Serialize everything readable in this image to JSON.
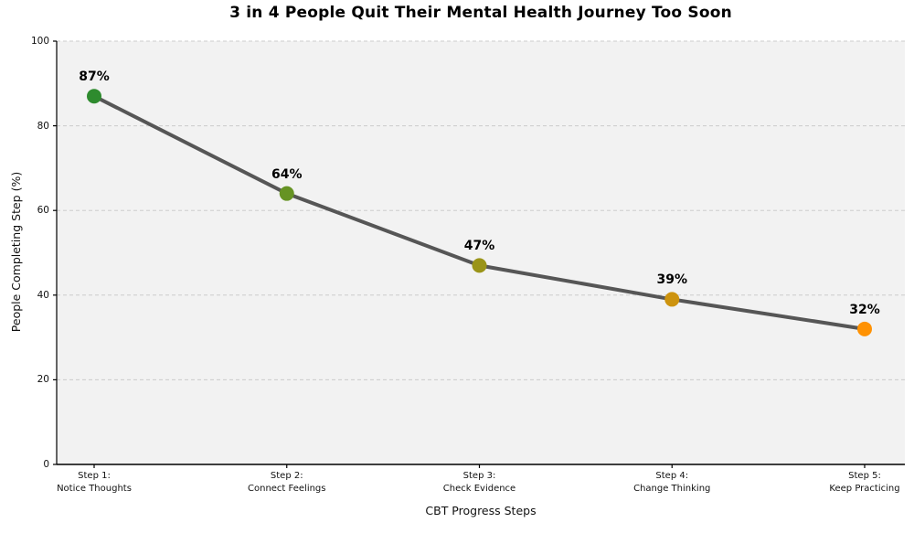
{
  "chart_data": {
    "type": "line",
    "title": "3 in 4 People Quit Their Mental Health Journey Too Soon",
    "xlabel": "CBT Progress Steps",
    "ylabel": "People Completing Step (%)",
    "categories": [
      "Step 1:\nNotice Thoughts",
      "Step 2:\nConnect Feelings",
      "Step 3:\nCheck Evidence",
      "Step 4:\nChange Thinking",
      "Step 5:\nKeep Practicing"
    ],
    "values": [
      87,
      64,
      47,
      39,
      32
    ],
    "point_labels": [
      "87%",
      "64%",
      "47%",
      "39%",
      "32%"
    ],
    "ylim": [
      0,
      100
    ],
    "yticks": [
      0,
      20,
      40,
      60,
      80,
      100
    ],
    "grid": "horizontal-dashed",
    "legend": "none",
    "colors": {
      "line": "#565656",
      "points": [
        "#2e8b2e",
        "#669323",
        "#9a9418",
        "#cd930e",
        "#ff9203"
      ],
      "plot_background": "#f2f2f2",
      "gridline": "#cccccc",
      "spine": "#000000"
    }
  }
}
